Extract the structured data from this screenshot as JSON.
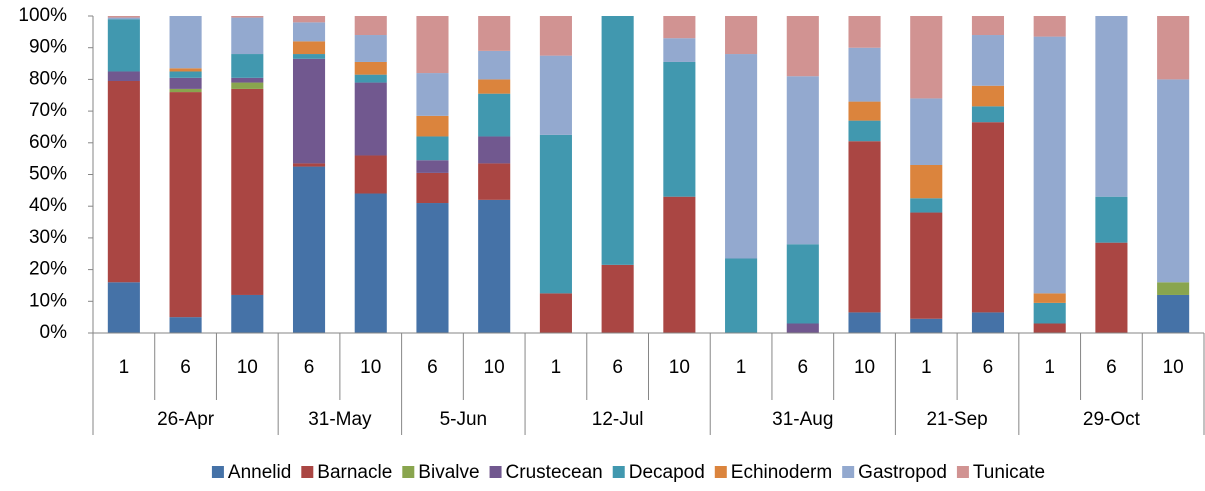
{
  "chart_data": {
    "type": "stacked_bar_100",
    "groups": [
      {
        "name": "26-Apr",
        "categories": [
          "1",
          "6",
          "10"
        ]
      },
      {
        "name": "31-May",
        "categories": [
          "6",
          "10"
        ]
      },
      {
        "name": "5-Jun",
        "categories": [
          "6",
          "10"
        ]
      },
      {
        "name": "12-Jul",
        "categories": [
          "1",
          "6",
          "10"
        ]
      },
      {
        "name": "31-Aug",
        "categories": [
          "1",
          "6",
          "10"
        ]
      },
      {
        "name": "21-Sep",
        "categories": [
          "1",
          "6"
        ]
      },
      {
        "name": "29-Oct",
        "categories": [
          "1",
          "6",
          "10"
        ]
      }
    ],
    "series": [
      {
        "name": "Annelid",
        "color": "#4572a7",
        "values": [
          16,
          5,
          12,
          52.5,
          44,
          41,
          42,
          0,
          0,
          0,
          0,
          0,
          6.5,
          4.5,
          6.5,
          0,
          0,
          12
        ]
      },
      {
        "name": "Barnacle",
        "color": "#aa4643",
        "values": [
          63.5,
          71,
          65,
          1,
          12,
          9.5,
          11.5,
          12.5,
          21.5,
          43,
          0,
          0,
          54,
          33.5,
          60,
          3,
          28.5,
          0
        ]
      },
      {
        "name": "Bivalve",
        "color": "#89a54e",
        "values": [
          0,
          1,
          2,
          0,
          0,
          0,
          0,
          0,
          0,
          0,
          0,
          0,
          0,
          0,
          0,
          0,
          0,
          4
        ]
      },
      {
        "name": "Crustecean",
        "color": "#71588f",
        "values": [
          3,
          3.5,
          1.5,
          33,
          23,
          4,
          8.5,
          0,
          0,
          0,
          0,
          3,
          0,
          0,
          0,
          0,
          0,
          0
        ]
      },
      {
        "name": "Decapod",
        "color": "#4198af",
        "values": [
          16.5,
          2,
          7.5,
          1.5,
          2.5,
          7.5,
          13.5,
          50,
          78.5,
          42.5,
          23.5,
          25,
          6.5,
          4.5,
          5,
          6.5,
          14.5,
          0
        ]
      },
      {
        "name": "Echinoderm",
        "color": "#db843d",
        "values": [
          0,
          1,
          0,
          4,
          4,
          6.5,
          4.5,
          0,
          0,
          0,
          0,
          0,
          6,
          10.5,
          6.5,
          3,
          0,
          0
        ]
      },
      {
        "name": "Gastropod",
        "color": "#93a9cf",
        "values": [
          0.5,
          16.5,
          11.5,
          6,
          8.5,
          13.5,
          9,
          25,
          0,
          7.5,
          64.5,
          53,
          17,
          21,
          16,
          81,
          57,
          64
        ]
      },
      {
        "name": "Tunicate",
        "color": "#d19392",
        "values": [
          0.5,
          0,
          0.5,
          2,
          6,
          18,
          11,
          12.5,
          0,
          7,
          12,
          19,
          10,
          26,
          6,
          6.5,
          0,
          20
        ]
      }
    ],
    "ylim": [
      0,
      100
    ],
    "yticks": [
      {
        "value": 0,
        "label": "0%"
      },
      {
        "value": 10,
        "label": "10%"
      },
      {
        "value": 20,
        "label": "20%"
      },
      {
        "value": 30,
        "label": "30%"
      },
      {
        "value": 40,
        "label": "40%"
      },
      {
        "value": 50,
        "label": "50%"
      },
      {
        "value": 60,
        "label": "60%"
      },
      {
        "value": 70,
        "label": "70%"
      },
      {
        "value": 80,
        "label": "80%"
      },
      {
        "value": 90,
        "label": "90%"
      },
      {
        "value": 100,
        "label": "100%"
      }
    ],
    "grid": false,
    "legend": "bottom"
  }
}
